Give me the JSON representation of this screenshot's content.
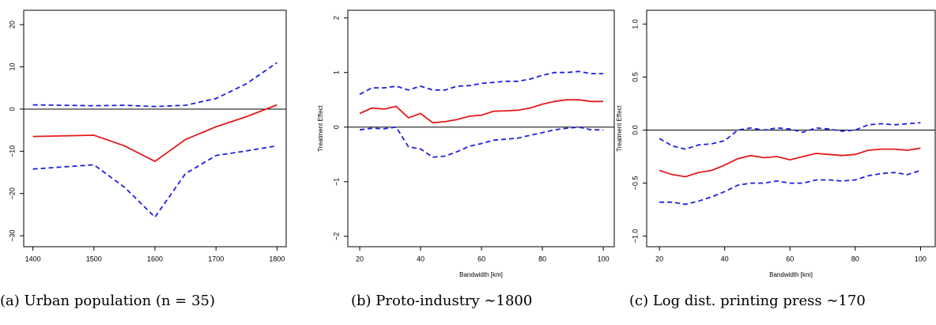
{
  "chart_data": [
    {
      "type": "line",
      "caption": "(a) Urban population (n = 35)",
      "x": [
        1400,
        1500,
        1550,
        1600,
        1650,
        1700,
        1750,
        1800
      ],
      "series": [
        {
          "color": "#e41a1c",
          "dash": "solid",
          "values": [
            -6.5,
            -6.2,
            -8.7,
            -12.4,
            -7.2,
            -4.2,
            -1.8,
            1.0
          ]
        },
        {
          "color": "#1f1fe0",
          "dash": "dashed",
          "values": [
            1.0,
            0.8,
            0.9,
            0.6,
            0.9,
            2.5,
            6.0,
            11.0
          ]
        },
        {
          "color": "#1f1fe0",
          "dash": "dashed",
          "values": [
            -14.2,
            -13.2,
            -18.5,
            -25.6,
            -15.3,
            -11.0,
            -9.9,
            -8.7
          ]
        }
      ],
      "hline": 0,
      "xlim": [
        1385,
        1815
      ],
      "xticks": [
        1400,
        1500,
        1600,
        1700,
        1800
      ],
      "ylim": [
        -32.6,
        23.4
      ],
      "yticks": [
        {
          "value": -30,
          "label": "−30"
        },
        {
          "value": -20,
          "label": "−20"
        },
        {
          "value": -10,
          "label": "−10"
        },
        0,
        10,
        20
      ]
    },
    {
      "type": "line",
      "caption": "(b) Proto-industry ∼1800",
      "xlabel": "Bandwidth [km]",
      "ylabel": "Treatment Effect",
      "x": [
        20,
        24,
        28,
        32,
        36,
        40,
        44,
        48,
        52,
        56,
        60,
        64,
        68,
        72,
        76,
        80,
        84,
        88,
        92,
        96,
        100
      ],
      "series": [
        {
          "color": "#e41a1c",
          "dash": "solid",
          "values": [
            0.25,
            0.35,
            0.33,
            0.38,
            0.17,
            0.25,
            0.08,
            0.1,
            0.14,
            0.2,
            0.22,
            0.29,
            0.3,
            0.31,
            0.35,
            0.42,
            0.47,
            0.5,
            0.5,
            0.47,
            0.47
          ]
        },
        {
          "color": "#1f1fe0",
          "dash": "dashed",
          "values": [
            0.6,
            0.72,
            0.72,
            0.75,
            0.68,
            0.75,
            0.68,
            0.68,
            0.75,
            0.76,
            0.8,
            0.82,
            0.84,
            0.84,
            0.88,
            0.95,
            1.0,
            1.0,
            1.02,
            0.98,
            0.98
          ]
        },
        {
          "color": "#1f1fe0",
          "dash": "dashed",
          "values": [
            -0.05,
            -0.02,
            -0.03,
            0.0,
            -0.36,
            -0.4,
            -0.55,
            -0.53,
            -0.45,
            -0.35,
            -0.3,
            -0.24,
            -0.22,
            -0.2,
            -0.15,
            -0.1,
            -0.05,
            -0.02,
            0.0,
            -0.05,
            -0.05
          ]
        }
      ],
      "hline": 0,
      "xlim": [
        16.1,
        103.6
      ],
      "xticks": [
        20,
        40,
        60,
        80,
        100
      ],
      "ylim": [
        -2.19,
        2.14
      ],
      "yticks": [
        {
          "value": -2,
          "label": "−2"
        },
        {
          "value": -1,
          "label": "−1"
        },
        0,
        1,
        2
      ]
    },
    {
      "type": "line",
      "caption": "(c) Log dist. printing press ∼170",
      "xlabel": "Bandwidth [km]",
      "ylabel": "Treatment Effect",
      "x": [
        20,
        24,
        28,
        32,
        36,
        40,
        44,
        48,
        52,
        56,
        60,
        64,
        68,
        72,
        76,
        80,
        84,
        88,
        92,
        96,
        100
      ],
      "series": [
        {
          "color": "#e41a1c",
          "dash": "solid",
          "values": [
            -0.38,
            -0.42,
            -0.44,
            -0.4,
            -0.38,
            -0.33,
            -0.27,
            -0.24,
            -0.26,
            -0.25,
            -0.28,
            -0.25,
            -0.22,
            -0.23,
            -0.24,
            -0.23,
            -0.19,
            -0.18,
            -0.18,
            -0.19,
            -0.17
          ]
        },
        {
          "color": "#1f1fe0",
          "dash": "dashed",
          "values": [
            -0.08,
            -0.15,
            -0.18,
            -0.14,
            -0.13,
            -0.1,
            0.0,
            0.02,
            0.0,
            0.02,
            0.01,
            -0.02,
            0.02,
            0.01,
            -0.01,
            0.0,
            0.05,
            0.06,
            0.05,
            0.06,
            0.07
          ]
        },
        {
          "color": "#1f1fe0",
          "dash": "dashed",
          "values": [
            -0.68,
            -0.68,
            -0.7,
            -0.67,
            -0.63,
            -0.58,
            -0.52,
            -0.5,
            -0.5,
            -0.48,
            -0.5,
            -0.5,
            -0.47,
            -0.47,
            -0.48,
            -0.47,
            -0.43,
            -0.41,
            -0.4,
            -0.42,
            -0.38
          ]
        }
      ],
      "hline": 0,
      "xlim": [
        16.1,
        104.5
      ],
      "xticks": [
        20,
        40,
        60,
        80,
        100
      ],
      "ylim": [
        -1.1,
        1.13
      ],
      "yticks": [
        {
          "value": -1.0,
          "label": "−1.0"
        },
        {
          "value": -0.5,
          "label": "−0.5"
        },
        {
          "value": 0,
          "label": "0.0"
        },
        0.5,
        {
          "value": 1.0,
          "label": "1.0"
        }
      ]
    }
  ]
}
